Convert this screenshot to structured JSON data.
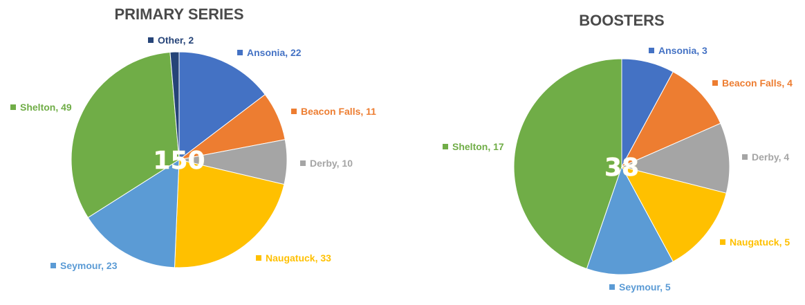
{
  "colors": {
    "Ansonia": "#4472C4",
    "Beacon Falls": "#ED7D31",
    "Derby": "#A5A5A5",
    "Naugatuck": "#FFC000",
    "Seymour": "#5B9BD5",
    "Shelton": "#70AD47",
    "Other": "#264478"
  },
  "chart_data": [
    {
      "type": "pie",
      "title": "PRIMARY SERIES",
      "total_label": "150",
      "slices": [
        {
          "name": "Ansonia",
          "value": 22,
          "label": "Ansonia, 22"
        },
        {
          "name": "Beacon Falls",
          "value": 11,
          "label": "Beacon Falls, 11"
        },
        {
          "name": "Derby",
          "value": 10,
          "label": "Derby, 10"
        },
        {
          "name": "Naugatuck",
          "value": 33,
          "label": "Naugatuck, 33"
        },
        {
          "name": "Seymour",
          "value": 23,
          "label": "Seymour, 23"
        },
        {
          "name": "Shelton",
          "value": 49,
          "label": "Shelton, 49"
        },
        {
          "name": "Other",
          "value": 2,
          "label": "Other, 2"
        }
      ]
    },
    {
      "type": "pie",
      "title": "BOOSTERS",
      "total_label": "38",
      "slices": [
        {
          "name": "Ansonia",
          "value": 3,
          "label": "Ansonia, 3"
        },
        {
          "name": "Beacon Falls",
          "value": 4,
          "label": "Beacon Falls, 4"
        },
        {
          "name": "Derby",
          "value": 4,
          "label": "Derby, 4"
        },
        {
          "name": "Naugatuck",
          "value": 5,
          "label": "Naugatuck, 5"
        },
        {
          "name": "Seymour",
          "value": 5,
          "label": "Seymour, 5"
        },
        {
          "name": "Shelton",
          "value": 17,
          "label": "Shelton, 17"
        }
      ]
    }
  ]
}
